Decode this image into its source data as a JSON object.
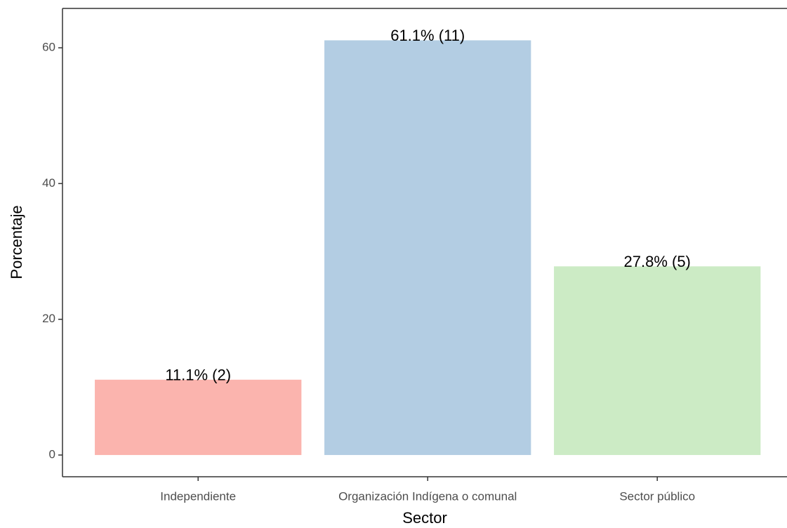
{
  "chart_data": {
    "type": "bar",
    "x_label": "Sector",
    "y_label": "Porcentaje",
    "categories": [
      "Independiente",
      "Organización Indígena o comunal",
      "Sector público"
    ],
    "values": [
      11.1,
      61.1,
      27.8
    ],
    "value_labels": [
      "11.1% (2)",
      "61.1% (11)",
      "27.8% (5)"
    ],
    "colors": [
      "#FBB4AE",
      "#B3CDE3",
      "#CCEBC5"
    ],
    "ylim": [
      -3.2,
      65.8
    ],
    "yticks": [
      0,
      20,
      40,
      60
    ],
    "grid": false
  }
}
